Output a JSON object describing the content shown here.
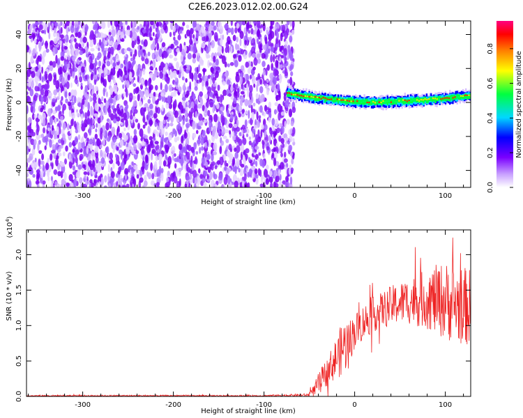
{
  "figure": {
    "title": "C2E6.2023.012.02.00.G24"
  },
  "chart_data": [
    {
      "type": "heatmap",
      "title": "",
      "xlabel": "Height of straight line (km)",
      "ylabel": "Frequency (Hz)",
      "xlim": [
        -362,
        128
      ],
      "ylim": [
        -50,
        48
      ],
      "xticks": [
        -300,
        -200,
        -100,
        0,
        100
      ],
      "xtick_labels": [
        "-300",
        "-200",
        "-100",
        "0",
        "100"
      ],
      "yticks": [
        -40,
        -20,
        0,
        20,
        40
      ],
      "ytick_labels": [
        "-40",
        "-20",
        "0",
        "20",
        "40"
      ],
      "grid": false,
      "noise_region": {
        "x_range": [
          -362,
          -75
        ],
        "description_color": "#7a00f0"
      },
      "signal_track": {
        "x": [
          -75,
          -60,
          -40,
          -20,
          0,
          20,
          40,
          60,
          80,
          100,
          128
        ],
        "center_freq": [
          5.5,
          4,
          2.5,
          1.5,
          0.5,
          0,
          0.5,
          1.0,
          1.5,
          2.5,
          4
        ],
        "peak_amplitude": 0.95
      },
      "colorbar": {
        "label": "Normalized spectral amplitude",
        "range": [
          0.0,
          0.96
        ],
        "ticks": [
          0.0,
          0.2,
          0.4,
          0.6,
          0.8
        ],
        "tick_labels": [
          "0.0",
          "0.2",
          "0.4",
          "0.6",
          "0.8"
        ],
        "colors": [
          "#ffffff",
          "#7a00ff",
          "#0000ff",
          "#00d8ff",
          "#00ff40",
          "#ffff00",
          "#ff8000",
          "#ff0000",
          "#ff0080"
        ]
      }
    },
    {
      "type": "line",
      "title": "",
      "xlabel": "Height of straight line (km)",
      "ylabel": "SNR (10 * v/v)",
      "y_multiplier": "(x10",
      "y_multiplier_exp": "4",
      "y_multiplier_close": ")",
      "xlim": [
        -362,
        128
      ],
      "ylim": [
        0.0,
        2.35
      ],
      "xticks": [
        -300,
        -200,
        -100,
        0,
        100
      ],
      "xtick_labels": [
        "-300",
        "-200",
        "-100",
        "0",
        "100"
      ],
      "yticks": [
        0.0,
        0.5,
        1.0,
        1.5,
        2.0
      ],
      "ytick_labels": [
        "0.0",
        "0.5",
        "1.0",
        "1.5",
        "2.0"
      ],
      "grid": false,
      "series": [
        {
          "color": "#ee2222",
          "envelope": {
            "x": [
              -362,
              -100,
              -52,
              -45,
              -40,
              -30,
              -20,
              -12,
              -5,
              0,
              10,
              20,
              30,
              40,
              50,
              60,
              70,
              80,
              90,
              100,
              110,
              120,
              128
            ],
            "mean": [
              0.01,
              0.01,
              0.02,
              0.08,
              0.18,
              0.35,
              0.55,
              0.7,
              0.8,
              0.92,
              1.05,
              1.15,
              1.22,
              1.28,
              1.32,
              1.35,
              1.36,
              1.37,
              1.36,
              1.35,
              1.3,
              1.28,
              1.25
            ],
            "spread": [
              0.01,
              0.01,
              0.02,
              0.08,
              0.15,
              0.2,
              0.3,
              0.4,
              0.3,
              0.25,
              0.25,
              0.25,
              0.25,
              0.28,
              0.3,
              0.33,
              0.38,
              0.42,
              0.5,
              0.55,
              0.55,
              0.55,
              0.55
            ]
          }
        }
      ]
    }
  ]
}
